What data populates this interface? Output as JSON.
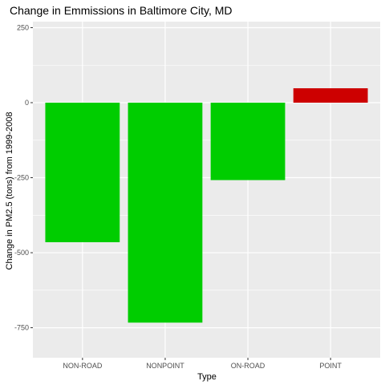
{
  "chart_data": {
    "type": "bar",
    "title": "Change in Emmissions in Baltimore City, MD",
    "xlabel": "Type",
    "ylabel": "Change in PM2.5 (tons) from 1999-2008",
    "categories": [
      "NON-ROAD",
      "NONPOINT",
      "ON-ROAD",
      "POINT"
    ],
    "values": [
      -465,
      -733,
      -258,
      48
    ],
    "bar_colors": [
      "#00cd00",
      "#00cd00",
      "#00cd00",
      "#cd0000"
    ],
    "ylim": [
      -850,
      270
    ],
    "yticks": [
      250,
      0,
      -250,
      -500,
      -750
    ],
    "ytick_labels": [
      "250",
      "0",
      "-250",
      "-500",
      "-750"
    ],
    "grid": true,
    "panel_background": "#ebebeb",
    "grid_color": "#ffffff"
  }
}
